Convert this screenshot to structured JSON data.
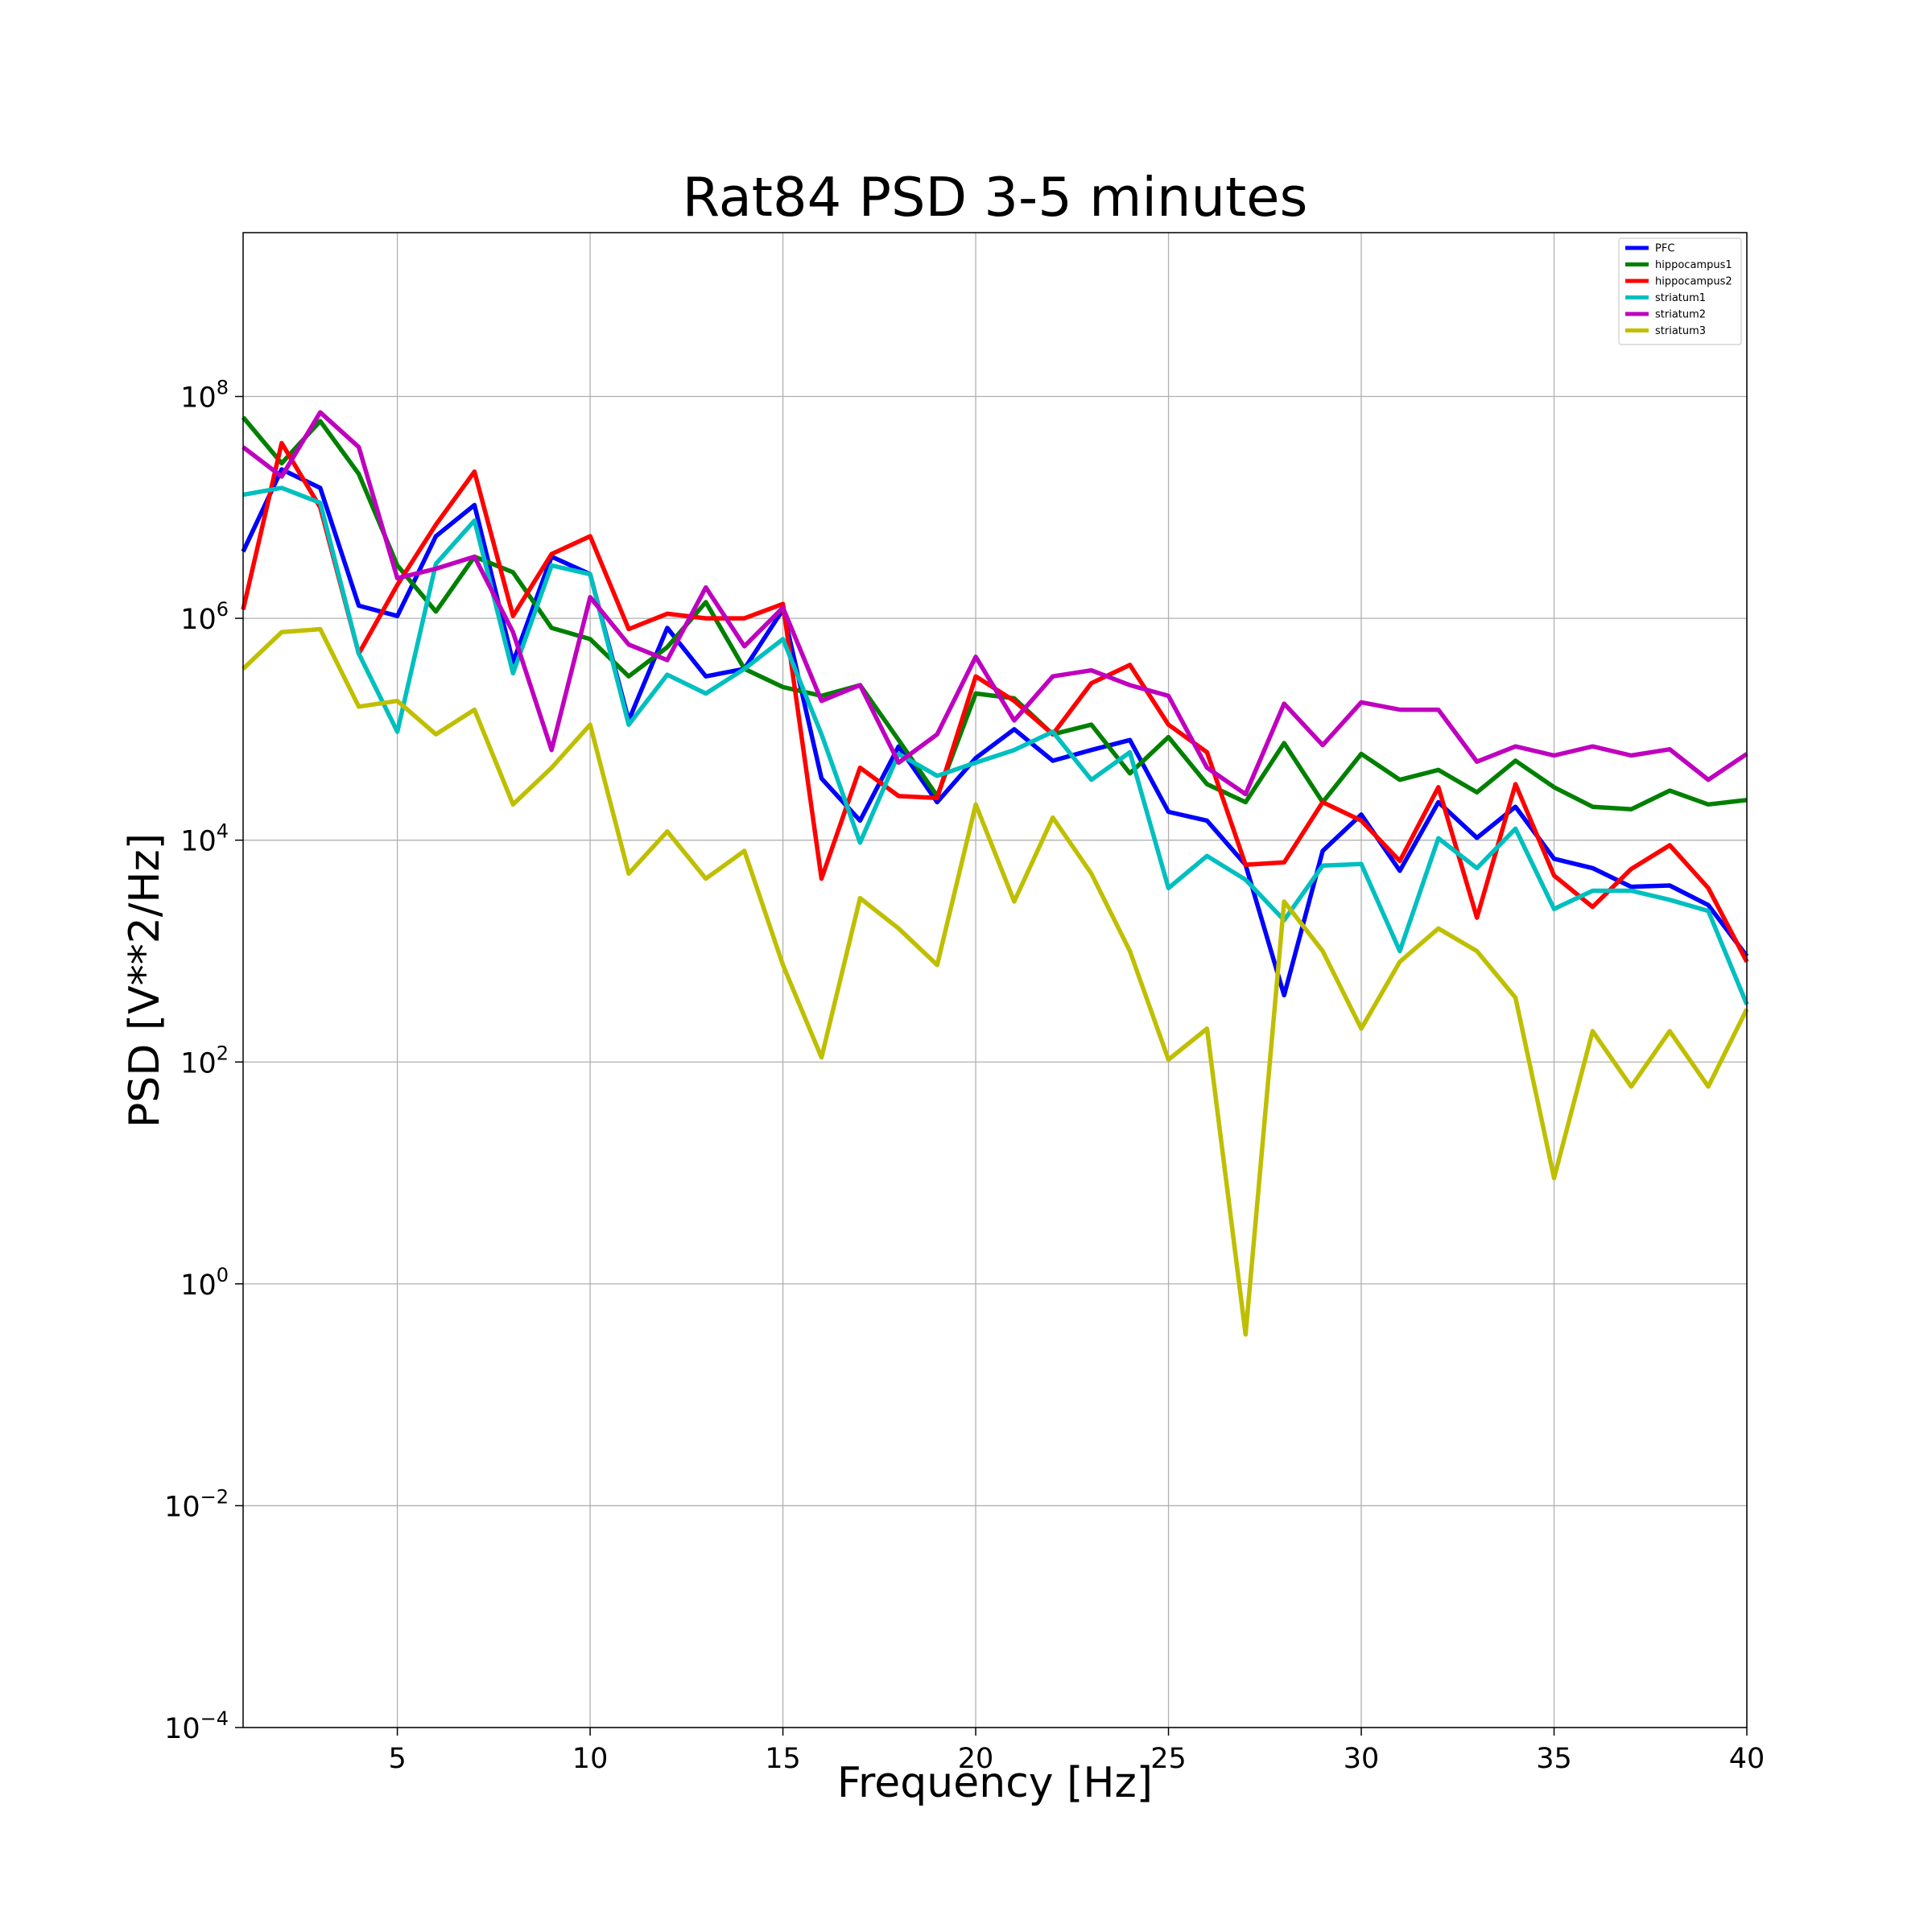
{
  "chart_data": {
    "type": "line",
    "title": "Rat84 PSD 3-5 minutes",
    "xlabel": "Frequency [Hz]",
    "ylabel": "PSD [V**2/Hz]",
    "xlim": [
      1,
      40
    ],
    "ylim": [
      0.0001,
      3000000000
    ],
    "yscale": "log",
    "grid": true,
    "legend_position": "top-right",
    "x_ticks": [
      5,
      10,
      15,
      20,
      25,
      30,
      35,
      40
    ],
    "x_tick_labels": [
      "5",
      "10",
      "15",
      "20",
      "25",
      "30",
      "35",
      "40"
    ],
    "y_ticks": [
      0.0001,
      0.01,
      1,
      100,
      10000,
      1000000,
      100000000
    ],
    "y_tick_labels": [
      {
        "base": "10",
        "exp": "−4"
      },
      {
        "base": "10",
        "exp": "−2"
      },
      {
        "base": "10",
        "exp": "0"
      },
      {
        "base": "10",
        "exp": "2"
      },
      {
        "base": "10",
        "exp": "4"
      },
      {
        "base": "10",
        "exp": "6"
      },
      {
        "base": "10",
        "exp": "8"
      }
    ],
    "x": [
      1,
      2,
      3,
      4,
      5,
      6,
      7,
      8,
      9,
      10,
      11,
      12,
      13,
      14,
      15,
      16,
      17,
      18,
      19,
      20,
      21,
      22,
      23,
      24,
      25,
      26,
      27,
      28,
      29,
      30,
      31,
      32,
      33,
      34,
      35,
      36,
      37,
      38,
      39,
      40
    ],
    "series": [
      {
        "name": "PFC",
        "color": "#0000ff",
        "values": [
          4000000,
          22000000,
          15000000,
          1300000,
          1050000,
          5500000,
          10500000,
          400000,
          3600000,
          2500000,
          120000,
          820000,
          300000,
          350000,
          1200000,
          36000,
          15000,
          70000,
          22000,
          55000,
          100000,
          52000,
          65000,
          80000,
          18000,
          15000,
          6000,
          400,
          8000,
          17000,
          5300,
          22000,
          10500,
          20000,
          6800,
          5600,
          3800,
          3900,
          2600,
          900
        ]
      },
      {
        "name": "hippocampus1",
        "color": "#008000",
        "values": [
          65000000,
          25000000,
          60000000,
          20000000,
          3000000,
          1150000,
          3600000,
          2600000,
          820000,
          650000,
          300000,
          550000,
          1400000,
          350000,
          240000,
          200000,
          250000,
          80000,
          25000,
          210000,
          190000,
          90000,
          110000,
          40000,
          85000,
          32000,
          22000,
          75000,
          22000,
          60000,
          35000,
          43000,
          27000,
          52000,
          30000,
          20000,
          19000,
          28000,
          21000,
          23000
        ]
      },
      {
        "name": "hippocampus2",
        "color": "#ff0000",
        "values": [
          1200000,
          38000000,
          10000000,
          480000,
          2000000,
          7000000,
          21000000,
          1050000,
          3800000,
          5500000,
          800000,
          1100000,
          1000000,
          1000000,
          1350000,
          4500,
          45000,
          25000,
          24000,
          300000,
          180000,
          90000,
          260000,
          380000,
          110000,
          62000,
          6000,
          6300,
          22000,
          15000,
          6500,
          30000,
          2000,
          32000,
          4800,
          2500,
          5500,
          9000,
          3700,
          800
        ]
      },
      {
        "name": "striatum1",
        "color": "#00bfbf",
        "values": [
          13000000,
          15000000,
          11000000,
          480000,
          95000,
          3100000,
          7600000,
          320000,
          3000000,
          2500000,
          110000,
          310000,
          210000,
          350000,
          650000,
          90000,
          9500,
          60000,
          38000,
          50000,
          65000,
          95000,
          35000,
          62000,
          3700,
          7200,
          4400,
          1900,
          5900,
          6100,
          1000,
          10400,
          5600,
          12700,
          2400,
          3500,
          3500,
          2900,
          2300,
          330
        ]
      },
      {
        "name": "striatum2",
        "color": "#bf00bf",
        "values": [
          35000000,
          19000000,
          72000000,
          35000000,
          2300000,
          2800000,
          3600000,
          750000,
          65000,
          1550000,
          580000,
          420000,
          1900000,
          560000,
          1250000,
          180000,
          250000,
          50000,
          90000,
          450000,
          120000,
          300000,
          340000,
          250000,
          200000,
          45000,
          26000,
          170000,
          72000,
          175000,
          150000,
          150000,
          51000,
          70000,
          58000,
          70000,
          58000,
          66000,
          35000,
          60000
        ]
      },
      {
        "name": "striatum3",
        "color": "#bfbf00",
        "values": [
          350000,
          750000,
          800000,
          160000,
          180000,
          90000,
          150000,
          21000,
          45000,
          110000,
          5000,
          12000,
          4500,
          8000,
          750,
          110,
          3000,
          1600,
          750,
          21000,
          2800,
          16000,
          5000,
          1000,
          105,
          200,
          0.35,
          2800,
          1000,
          200,
          800,
          1600,
          1000,
          380,
          9,
          190,
          60,
          190,
          60,
          300
        ]
      }
    ]
  }
}
